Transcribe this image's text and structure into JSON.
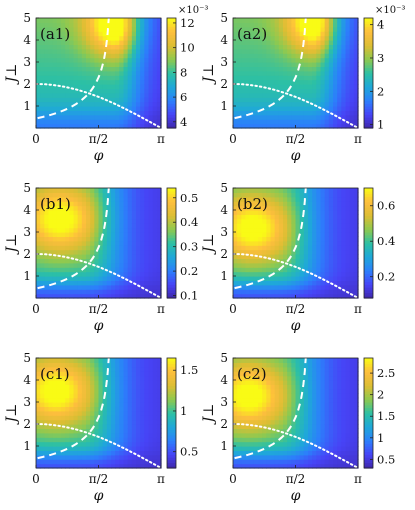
{
  "figure": {
    "colormap": [
      "#3e26a8",
      "#4743f6",
      "#2c7ffb",
      "#1fa8d9",
      "#2cc0a5",
      "#8ec950",
      "#dcbe33",
      "#fdbe3d",
      "#f9fb15"
    ],
    "line_color": "#ffffff"
  },
  "chart_data": [
    {
      "type": "heatmap",
      "panel": "(a1)",
      "xlabel": "φ",
      "ylabel": "J⊥",
      "xlim": [
        0,
        3.1416
      ],
      "ylim": [
        0,
        5
      ],
      "xticks": [
        "0",
        "π/2",
        "π"
      ],
      "yticks": [
        "1",
        "2",
        "3",
        "4",
        "5"
      ],
      "colorbar": {
        "min": 3.5,
        "max": 12.4,
        "ticks": [
          "4",
          "6",
          "8",
          "10",
          "12"
        ],
        "exponent": "×10⁻³"
      },
      "max_region": {
        "phi": 2.0,
        "J": 4.7
      }
    },
    {
      "type": "heatmap",
      "panel": "(a2)",
      "xlabel": "φ",
      "ylabel": "J⊥",
      "xlim": [
        0,
        3.1416
      ],
      "ylim": [
        0,
        5
      ],
      "xticks": [
        "0",
        "π/2",
        "π"
      ],
      "yticks": [
        "1",
        "2",
        "3",
        "4",
        "5"
      ],
      "colorbar": {
        "min": 0.9,
        "max": 4.2,
        "ticks": [
          "1",
          "2",
          "3",
          "4"
        ],
        "exponent": "×10⁻³"
      },
      "max_region": {
        "phi": 2.1,
        "J": 4.8
      }
    },
    {
      "type": "heatmap",
      "panel": "(b1)",
      "xlabel": "φ",
      "ylabel": "J⊥",
      "xlim": [
        0,
        3.1416
      ],
      "ylim": [
        0,
        5
      ],
      "xticks": [
        "0",
        "π/2",
        "π"
      ],
      "yticks": [
        "1",
        "2",
        "3",
        "4",
        "5"
      ],
      "colorbar": {
        "min": 0.09,
        "max": 0.54,
        "ticks": [
          "0.1",
          "0.2",
          "0.3",
          "0.4",
          "0.5"
        ],
        "exponent": ""
      },
      "max_region": {
        "phi": 0.6,
        "J": 3.6
      }
    },
    {
      "type": "heatmap",
      "panel": "(b2)",
      "xlabel": "φ",
      "ylabel": "J⊥",
      "xlim": [
        0,
        3.1416
      ],
      "ylim": [
        0,
        5
      ],
      "xticks": [
        "0",
        "π/2",
        "π"
      ],
      "yticks": [
        "1",
        "2",
        "3",
        "4",
        "5"
      ],
      "colorbar": {
        "min": 0.08,
        "max": 0.7,
        "ticks": [
          "0.2",
          "0.4",
          "0.6"
        ],
        "exponent": ""
      },
      "max_region": {
        "phi": 0.5,
        "J": 3.2
      }
    },
    {
      "type": "heatmap",
      "panel": "(c1)",
      "xlabel": "φ",
      "ylabel": "J⊥",
      "xlim": [
        0,
        3.1416
      ],
      "ylim": [
        0,
        5
      ],
      "xticks": [
        "0",
        "π/2",
        "π"
      ],
      "yticks": [
        "1",
        "2",
        "3",
        "4",
        "5"
      ],
      "colorbar": {
        "min": 0.3,
        "max": 1.65,
        "ticks": [
          "0.5",
          "1",
          "1.5"
        ],
        "exponent": ""
      },
      "max_region": {
        "phi": 0.5,
        "J": 3.5
      }
    },
    {
      "type": "heatmap",
      "panel": "(c2)",
      "xlabel": "φ",
      "ylabel": "J⊥",
      "xlim": [
        0,
        3.1416
      ],
      "ylim": [
        0,
        5
      ],
      "xticks": [
        "0",
        "π/2",
        "π"
      ],
      "yticks": [
        "1",
        "2",
        "3",
        "4",
        "5"
      ],
      "colorbar": {
        "min": 0.3,
        "max": 2.85,
        "ticks": [
          "0.5",
          "1",
          "1.5",
          "2",
          "2.5"
        ],
        "exponent": ""
      },
      "max_region": {
        "phi": 0.4,
        "J": 3.3
      }
    }
  ]
}
